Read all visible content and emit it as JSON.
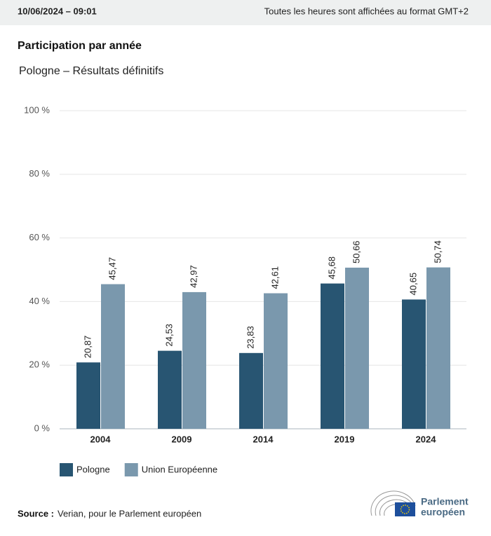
{
  "header": {
    "timestamp": "10/06/2024 – 09:01",
    "timezone_note": "Toutes les heures sont affichées au format GMT+2"
  },
  "chart_data": {
    "type": "bar",
    "title": "Participation par année",
    "subtitle": "Pologne – Résultats définitifs",
    "categories": [
      "2004",
      "2009",
      "2014",
      "2019",
      "2024"
    ],
    "series": [
      {
        "name": "Pologne",
        "color": "#285572",
        "values": [
          20.87,
          24.53,
          23.83,
          45.68,
          40.65
        ],
        "value_labels": [
          "20,87",
          "24,53",
          "23,83",
          "45,68",
          "40,65"
        ]
      },
      {
        "name": "Union Européenne",
        "color": "#7a98ad",
        "values": [
          45.47,
          42.97,
          42.61,
          50.66,
          50.74
        ],
        "value_labels": [
          "45,47",
          "42,97",
          "42,61",
          "50,66",
          "50,74"
        ]
      }
    ],
    "ylim": [
      0,
      100
    ],
    "yticks": [
      {
        "value": 0,
        "label": "0 %"
      },
      {
        "value": 20,
        "label": "20 %"
      },
      {
        "value": 40,
        "label": "40 %"
      },
      {
        "value": 60,
        "label": "60 %"
      },
      {
        "value": 80,
        "label": "80 %"
      },
      {
        "value": 100,
        "label": "100 %"
      }
    ],
    "grid": true,
    "legend": "bottom-left"
  },
  "source": {
    "label": "Source :",
    "text": "Verian, pour le Parlement européen"
  },
  "logo": {
    "line1": "Parlement",
    "line2": "européen"
  }
}
